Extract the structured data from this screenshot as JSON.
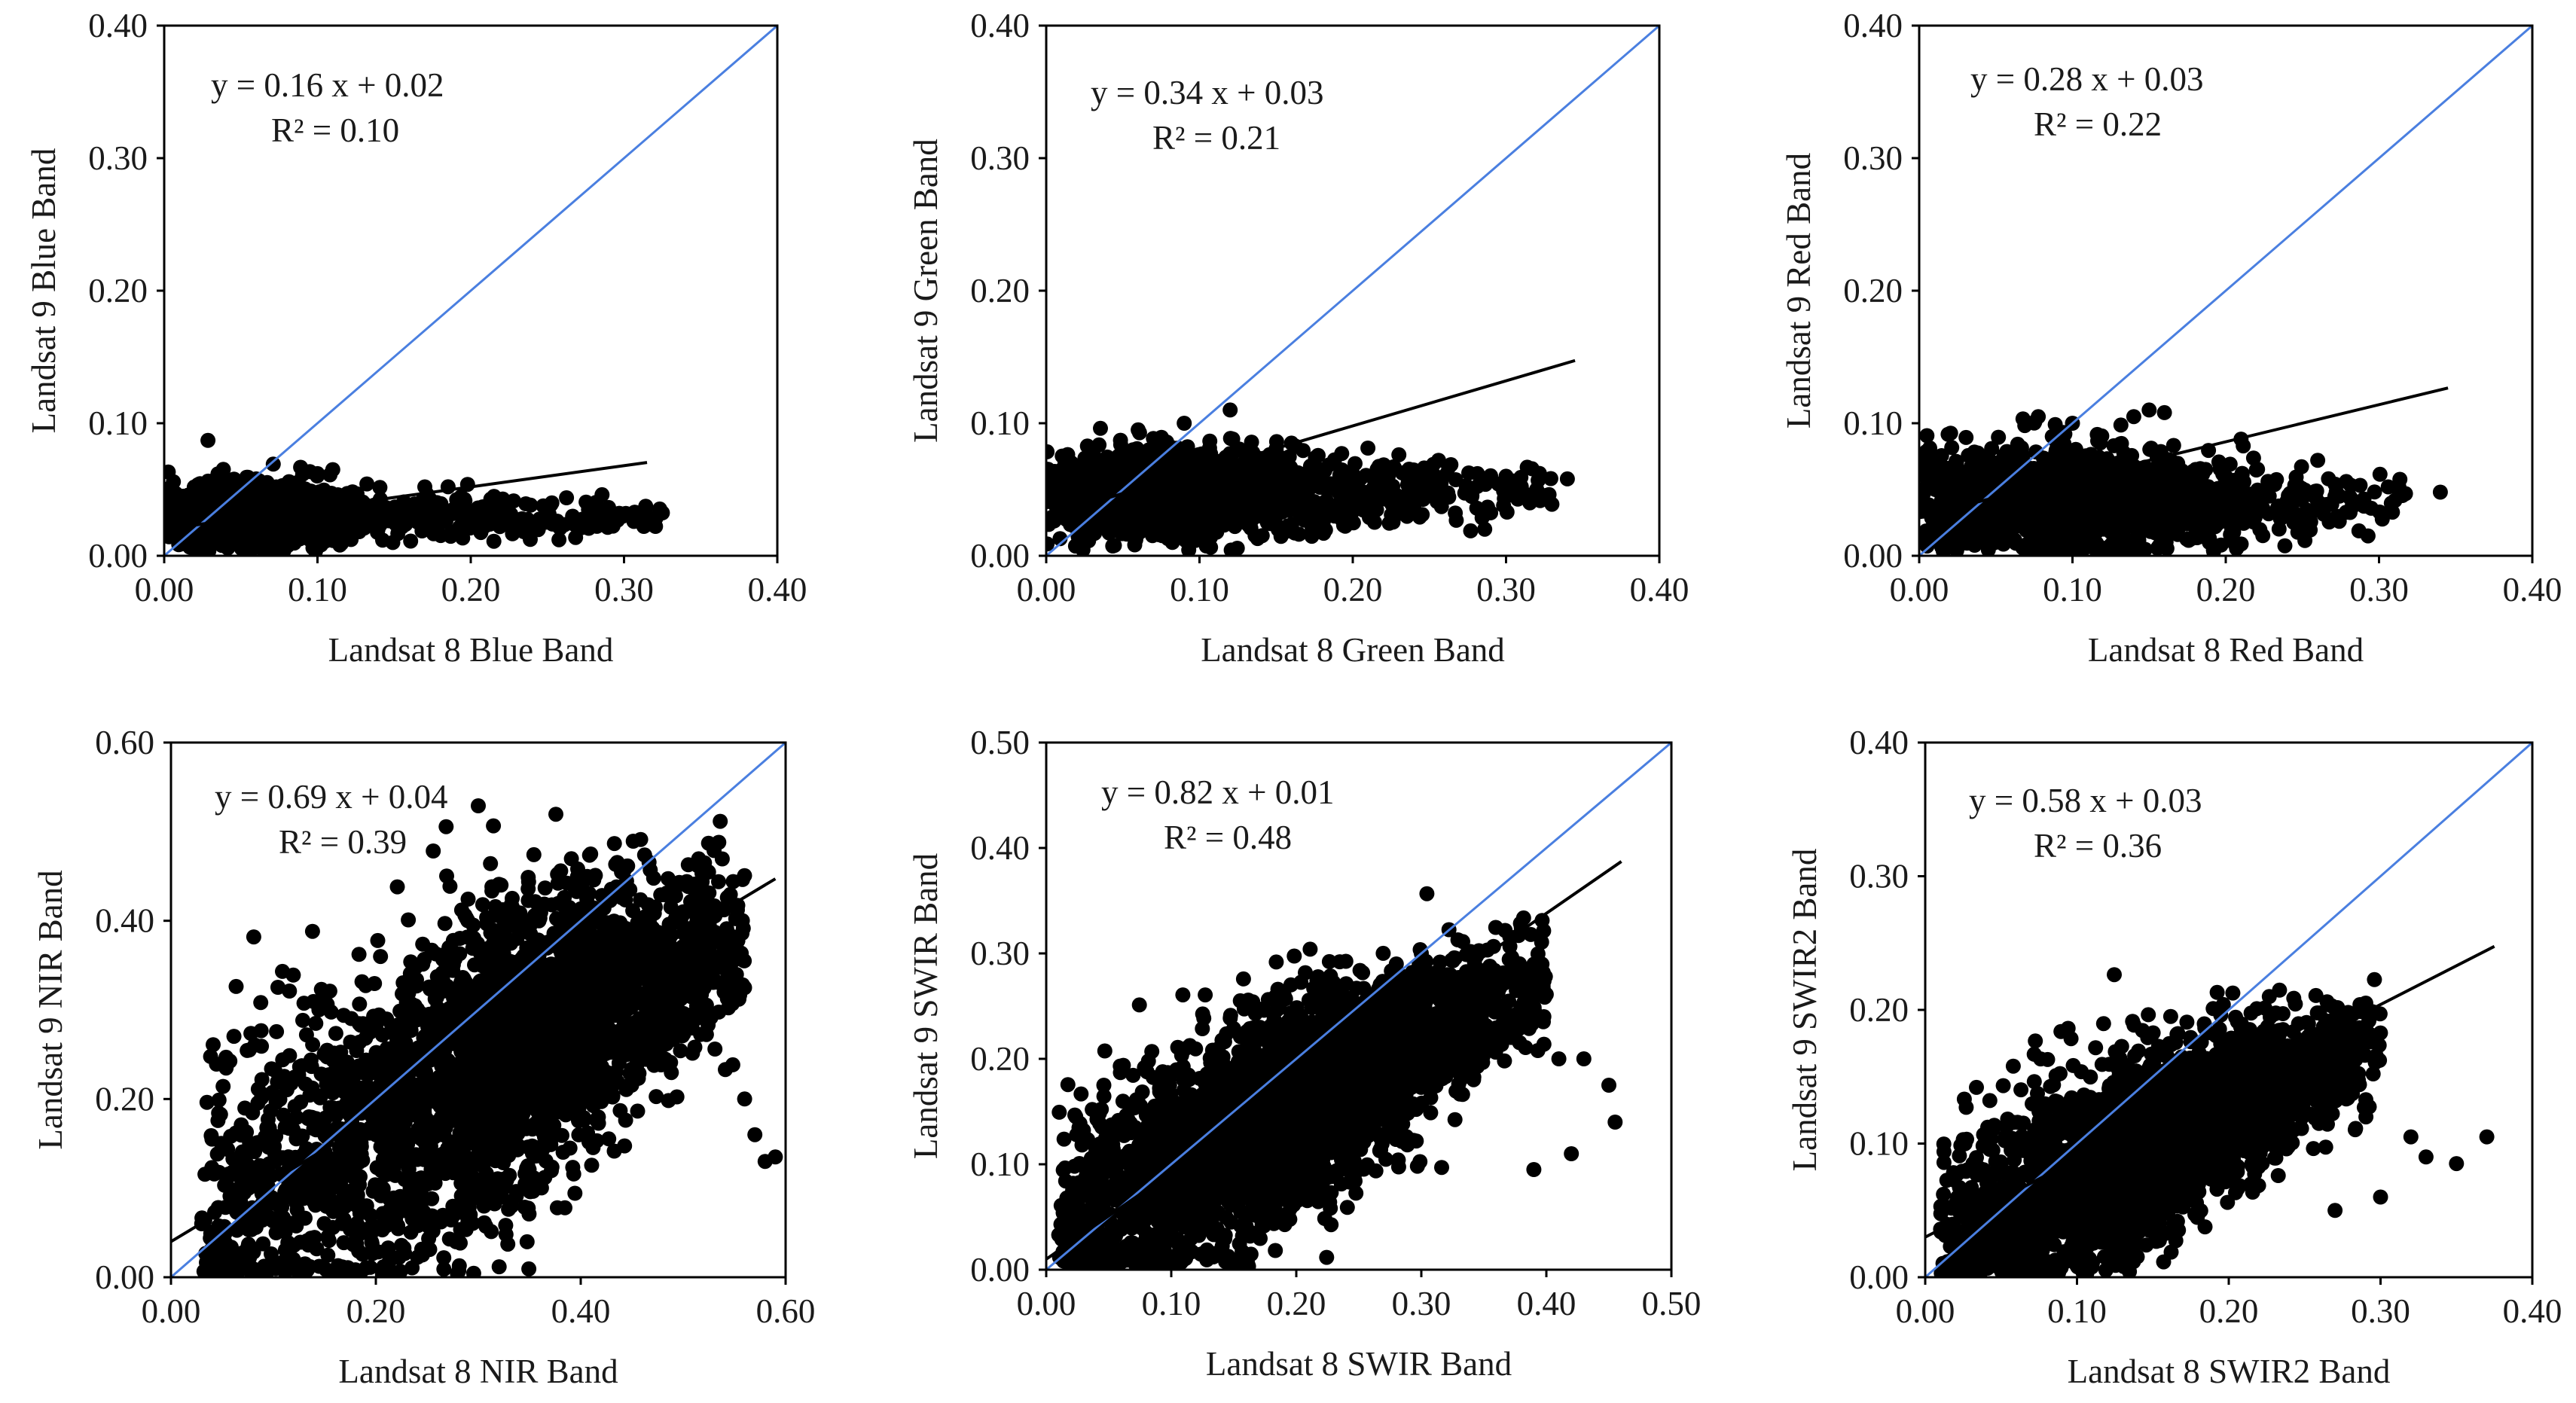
{
  "colors": {
    "identity_line": "#4a7fe0",
    "trend_line": "#000000",
    "points": "#000000",
    "axis": "#000000"
  },
  "chart_data": [
    {
      "type": "scatter",
      "id": "blue",
      "xlabel": "Landsat 8 Blue Band",
      "ylabel": "Landsat 9 Blue Band",
      "xlim": [
        0,
        0.4
      ],
      "ylim": [
        0,
        0.4
      ],
      "xticks": [
        "0.00",
        "0.10",
        "0.20",
        "0.30",
        "0.40"
      ],
      "yticks": [
        "0.00",
        "0.10",
        "0.20",
        "0.30",
        "0.40"
      ],
      "equation": "y = 0.16 x + 0.02",
      "r2": "R² = 0.10",
      "slope": 0.16,
      "intercept": 0.02,
      "fit_x_range": [
        0.0,
        0.315
      ],
      "cloud": {
        "x_range": [
          0.0,
          0.33
        ],
        "y_center": 0.03,
        "y_spread": 0.012,
        "peak_x": 0.05,
        "density": 1.2
      },
      "outliers": [
        [
          0.03,
          0.055
        ],
        [
          0.06,
          0.058
        ],
        [
          0.11,
          0.065
        ],
        [
          0.17,
          0.052
        ],
        [
          0.28,
          0.035
        ],
        [
          0.31,
          0.03
        ],
        [
          0.1,
          0.062
        ]
      ]
    },
    {
      "type": "scatter",
      "id": "green",
      "xlabel": "Landsat 8 Green Band",
      "ylabel": "Landsat 9 Green Band",
      "xlim": [
        0,
        0.4
      ],
      "ylim": [
        0,
        0.4
      ],
      "xticks": [
        "0.00",
        "0.10",
        "0.20",
        "0.30",
        "0.40"
      ],
      "yticks": [
        "0.00",
        "0.10",
        "0.20",
        "0.30",
        "0.40"
      ],
      "equation": "y = 0.34 x + 0.03",
      "r2": "R² = 0.21",
      "slope": 0.34,
      "intercept": 0.03,
      "fit_x_range": [
        0.0,
        0.345
      ],
      "cloud": {
        "x_range": [
          0.0,
          0.33
        ],
        "y_center": 0.048,
        "y_spread": 0.018,
        "peak_x": 0.07,
        "density": 1.3
      },
      "outliers": [
        [
          0.06,
          0.095
        ],
        [
          0.09,
          0.1
        ],
        [
          0.12,
          0.11
        ],
        [
          0.16,
          0.085
        ],
        [
          0.32,
          0.05
        ],
        [
          0.34,
          0.058
        ],
        [
          0.3,
          0.06
        ]
      ]
    },
    {
      "type": "scatter",
      "id": "red",
      "xlabel": "Landsat 8 Red Band",
      "ylabel": "Landsat 9 Red Band",
      "xlim": [
        0,
        0.4
      ],
      "ylim": [
        0,
        0.4
      ],
      "xticks": [
        "0.00",
        "0.10",
        "0.20",
        "0.30",
        "0.40"
      ],
      "yticks": [
        "0.00",
        "0.10",
        "0.20",
        "0.30",
        "0.40"
      ],
      "equation": "y = 0.28 x + 0.03",
      "r2": "R² = 0.22",
      "slope": 0.28,
      "intercept": 0.03,
      "fit_x_range": [
        0.0,
        0.345
      ],
      "cloud": {
        "x_range": [
          0.0,
          0.32
        ],
        "y_center": 0.04,
        "y_spread": 0.022,
        "peak_x": 0.08,
        "density": 1.3
      },
      "outliers": [
        [
          0.14,
          0.105
        ],
        [
          0.15,
          0.11
        ],
        [
          0.16,
          0.108
        ],
        [
          0.1,
          0.1
        ],
        [
          0.21,
          0.088
        ],
        [
          0.26,
          0.072
        ],
        [
          0.34,
          0.048
        ]
      ]
    },
    {
      "type": "scatter",
      "id": "nir",
      "xlabel": "Landsat 8 NIR Band",
      "ylabel": "Landsat 9 NIR Band",
      "xlim": [
        0,
        0.6
      ],
      "ylim": [
        0,
        0.6
      ],
      "xticks": [
        "0.00",
        "0.20",
        "0.40",
        "0.60"
      ],
      "yticks": [
        "0.00",
        "0.20",
        "0.40",
        "0.60"
      ],
      "equation": "y = 0.69 x + 0.04",
      "r2": "R² = 0.39",
      "slope": 0.69,
      "intercept": 0.04,
      "fit_x_range": [
        0.0,
        0.59
      ],
      "cloud": {
        "x_range": [
          0.03,
          0.56
        ],
        "y_center": 0.22,
        "y_spread": 0.09,
        "peak_x": 0.28,
        "density": 3.2,
        "slope_in_cloud": 0.6
      },
      "outliers": [
        [
          0.03,
          0.06
        ],
        [
          0.04,
          0.155
        ],
        [
          0.57,
          0.16
        ],
        [
          0.58,
          0.13
        ],
        [
          0.59,
          0.135
        ],
        [
          0.56,
          0.2
        ],
        [
          0.43,
          0.43
        ],
        [
          0.5,
          0.41
        ],
        [
          0.54,
          0.32
        ]
      ]
    },
    {
      "type": "scatter",
      "id": "swir",
      "xlabel": "Landsat 8 SWIR Band",
      "ylabel": "Landsat 9 SWIR Band",
      "xlim": [
        0,
        0.5
      ],
      "ylim": [
        0,
        0.5
      ],
      "xticks": [
        "0.00",
        "0.10",
        "0.20",
        "0.30",
        "0.40",
        "0.50"
      ],
      "yticks": [
        "0.00",
        "0.10",
        "0.20",
        "0.30",
        "0.40",
        "0.50"
      ],
      "equation": "y = 0.82 x + 0.01",
      "r2": "R² = 0.48",
      "slope": 0.82,
      "intercept": 0.01,
      "fit_x_range": [
        0.0,
        0.46
      ],
      "cloud": {
        "x_range": [
          0.01,
          0.4
        ],
        "y_center": 0.13,
        "y_spread": 0.055,
        "peak_x": 0.16,
        "density": 3.0,
        "slope_in_cloud": 0.6
      },
      "outliers": [
        [
          0.41,
          0.2
        ],
        [
          0.43,
          0.2
        ],
        [
          0.455,
          0.14
        ],
        [
          0.42,
          0.11
        ],
        [
          0.39,
          0.095
        ],
        [
          0.28,
          0.29
        ],
        [
          0.3,
          0.3
        ],
        [
          0.45,
          0.175
        ]
      ]
    },
    {
      "type": "scatter",
      "id": "swir2",
      "xlabel": "Landsat 8 SWIR2 Band",
      "ylabel": "Landsat 9 SWIR2 Band",
      "xlim": [
        0,
        0.4
      ],
      "ylim": [
        0,
        0.4
      ],
      "xticks": [
        "0.00",
        "0.10",
        "0.20",
        "0.30",
        "0.40"
      ],
      "yticks": [
        "0.00",
        "0.10",
        "0.20",
        "0.30",
        "0.40"
      ],
      "equation": "y = 0.58 x + 0.03",
      "r2": "R² = 0.36",
      "slope": 0.58,
      "intercept": 0.03,
      "fit_x_range": [
        0.0,
        0.375
      ],
      "cloud": {
        "x_range": [
          0.01,
          0.3
        ],
        "y_center": 0.085,
        "y_spread": 0.038,
        "peak_x": 0.12,
        "density": 2.6,
        "slope_in_cloud": 0.5
      },
      "outliers": [
        [
          0.37,
          0.105
        ],
        [
          0.35,
          0.085
        ],
        [
          0.32,
          0.105
        ],
        [
          0.3,
          0.06
        ],
        [
          0.27,
          0.05
        ],
        [
          0.22,
          0.18
        ],
        [
          0.2,
          0.175
        ],
        [
          0.33,
          0.09
        ]
      ]
    }
  ]
}
